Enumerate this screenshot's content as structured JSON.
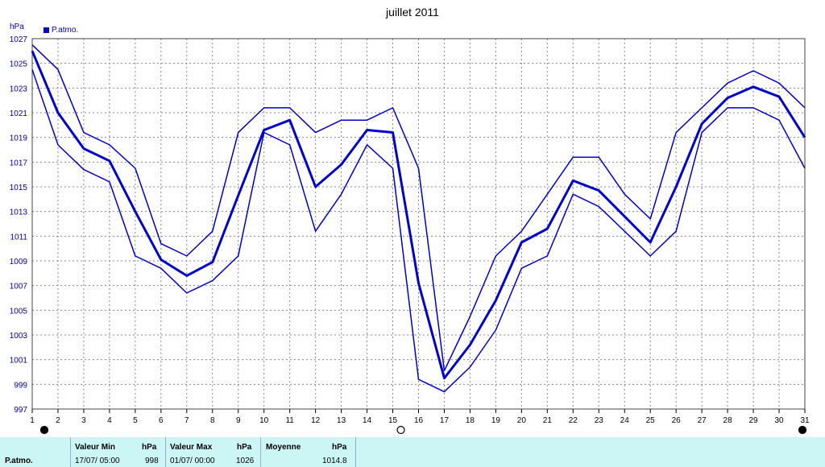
{
  "chart_data": {
    "type": "line",
    "title": "juillet 2011",
    "ylabel": "hPa",
    "xlim": [
      1,
      31
    ],
    "ylim": [
      997,
      1027
    ],
    "grid": true,
    "legend_position": "top-left",
    "x": [
      1,
      2,
      3,
      4,
      5,
      6,
      7,
      8,
      9,
      10,
      11,
      12,
      13,
      14,
      15,
      16,
      17,
      18,
      19,
      20,
      21,
      22,
      23,
      24,
      25,
      26,
      27,
      28,
      29,
      30,
      31
    ],
    "yticks": [
      997,
      999,
      1001,
      1003,
      1005,
      1007,
      1009,
      1011,
      1013,
      1015,
      1017,
      1019,
      1021,
      1023,
      1025,
      1027
    ],
    "series": [
      {
        "name": "P.atmo.",
        "role": "mean",
        "color": "#0000cc",
        "values": [
          1026,
          1021,
          1018.1,
          1017.1,
          1013,
          1009.1,
          1007.8,
          1008.9,
          1014.3,
          1019.6,
          1020.4,
          1015,
          1016.8,
          1019.6,
          1019.4,
          1007.2,
          999.5,
          1002.2,
          1005.8,
          1010.5,
          1011.6,
          1015.5,
          1014.7,
          1012.6,
          1010.5,
          1015,
          1020.1,
          1022.2,
          1023.1,
          1022.3,
          1019
        ]
      },
      {
        "role": "max",
        "color": "#0000cc",
        "values": [
          1026.5,
          1024.5,
          1019.4,
          1018.4,
          1016.5,
          1010.4,
          1009.4,
          1011.4,
          1019.4,
          1021.4,
          1021.4,
          1019.4,
          1020.4,
          1020.4,
          1021.4,
          1016.5,
          1000.1,
          1004.5,
          1009.4,
          1011.4,
          1014.4,
          1017.4,
          1017.4,
          1014.4,
          1012.4,
          1019.4,
          1021.4,
          1023.4,
          1024.4,
          1023.4,
          1021.4
        ]
      },
      {
        "role": "min",
        "color": "#0000cc",
        "values": [
          1024.5,
          1018.4,
          1016.4,
          1015.4,
          1009.4,
          1008.4,
          1006.4,
          1007.4,
          1009.4,
          1019.4,
          1018.4,
          1011.4,
          1014.4,
          1018.4,
          1016.5,
          999.4,
          998.4,
          1000.4,
          1003.4,
          1008.4,
          1009.4,
          1014.4,
          1013.4,
          1011.4,
          1009.4,
          1011.4,
          1019.4,
          1021.4,
          1021.4,
          1020.4,
          1016.5
        ]
      }
    ],
    "moon_phases": [
      {
        "day": 1,
        "phase": "new"
      },
      {
        "day": 15,
        "phase": "full"
      },
      {
        "day": 31,
        "phase": "new"
      }
    ]
  },
  "summary": {
    "row_label": "P.atmo.",
    "min": {
      "header": "Valeur Min",
      "unit": "hPa",
      "datetime": "17/07/  05:00",
      "value": "998"
    },
    "max": {
      "header": "Valeur Max",
      "unit": "hPa",
      "datetime": "01/07/  00:00",
      "value": "1026"
    },
    "avg": {
      "header": "Moyenne",
      "unit": "hPa",
      "value": "1014.8"
    }
  }
}
